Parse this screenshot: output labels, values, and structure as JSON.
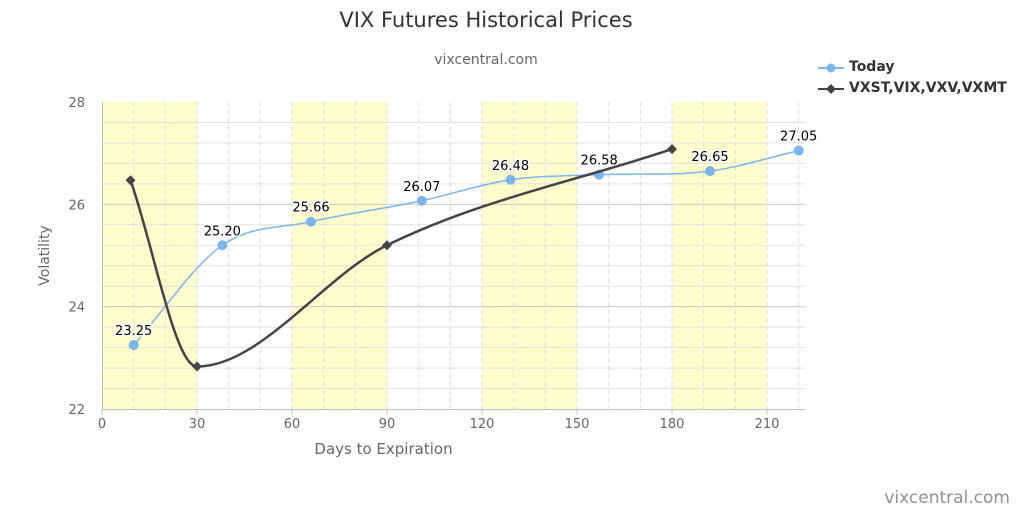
{
  "chart_data": {
    "type": "line",
    "title": "VIX Futures Historical Prices",
    "subtitle": "vixcentral.com",
    "credit": "vixcentral.com",
    "xlabel": "Days to Expiration",
    "ylabel": "Volatility",
    "xlim": [
      0,
      222
    ],
    "ylim": [
      22,
      28
    ],
    "xticks": [
      "0",
      "30",
      "60",
      "90",
      "120",
      "150",
      "180",
      "210"
    ],
    "yticks": [
      "22",
      "24",
      "26",
      "28"
    ],
    "shaded_bands": [
      [
        0,
        30
      ],
      [
        60,
        90
      ],
      [
        120,
        150
      ],
      [
        180,
        210
      ]
    ],
    "band_color": "#ffffcc",
    "grid": true,
    "legend_position": "top-right",
    "series": [
      {
        "name": "Today",
        "color": "#7cb5ec",
        "marker": "circle",
        "x": [
          10,
          38,
          66,
          101,
          129,
          157,
          192,
          220
        ],
        "values": [
          23.25,
          25.2,
          25.66,
          26.07,
          26.48,
          26.58,
          26.65,
          27.05
        ],
        "data_labels": [
          "23.25",
          "25.20",
          "25.66",
          "26.07",
          "26.48",
          "26.58",
          "26.65",
          "27.05"
        ]
      },
      {
        "name": "VXST,VIX,VXV,VXMT",
        "color": "#434348",
        "marker": "diamond",
        "x": [
          9,
          30,
          90,
          180
        ],
        "values": [
          26.47,
          22.83,
          25.2,
          27.08
        ]
      }
    ]
  }
}
